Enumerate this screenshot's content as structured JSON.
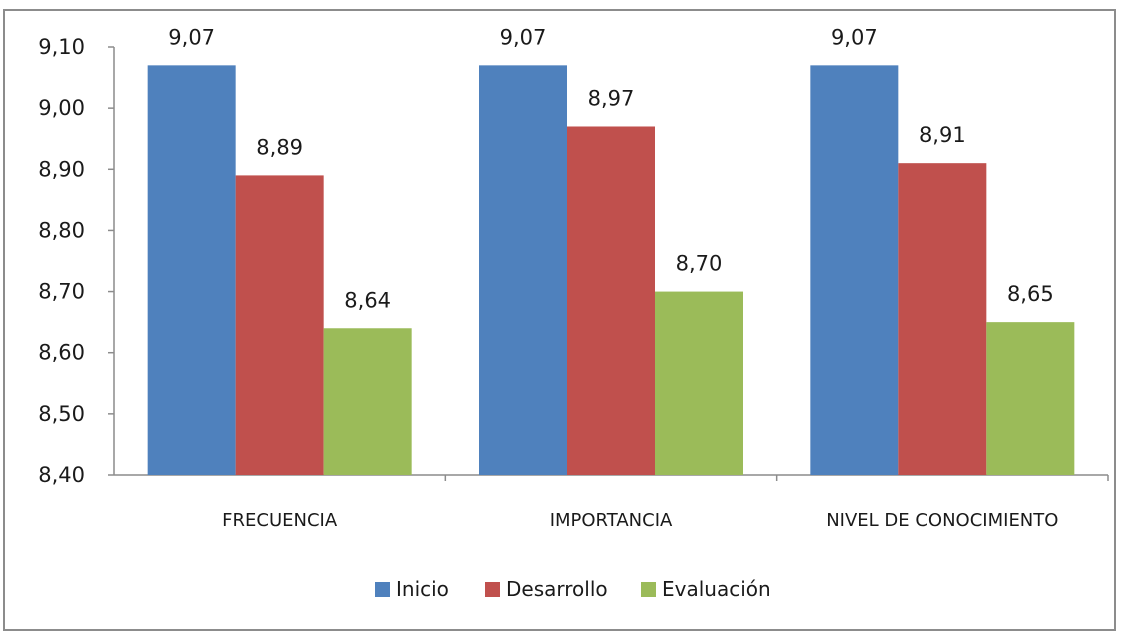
{
  "chart_data": {
    "type": "bar",
    "title": "",
    "xlabel": "",
    "ylabel": "",
    "categories": [
      "FRECUENCIA",
      "IMPORTANCIA",
      "NIVEL DE CONOCIMIENTO"
    ],
    "series": [
      {
        "name": "Inicio",
        "color": "#4f81bd",
        "values": [
          9.07,
          9.07,
          9.07
        ],
        "labels": [
          "9,07",
          "9,07",
          "9,07"
        ]
      },
      {
        "name": "Desarrollo",
        "color": "#c0504d",
        "values": [
          8.89,
          8.97,
          8.91
        ],
        "labels": [
          "8,89",
          "8,97",
          "8,91"
        ]
      },
      {
        "name": "Evaluación",
        "color": "#9bbb59",
        "values": [
          8.64,
          8.7,
          8.65
        ],
        "labels": [
          "8,64",
          "8,70",
          "8,65"
        ]
      }
    ],
    "ylim": [
      8.4,
      9.1
    ],
    "yticks": [
      8.4,
      8.5,
      8.6,
      8.7,
      8.8,
      8.9,
      9.0,
      9.1
    ],
    "ytick_labels": [
      "8,40",
      "8,50",
      "8,60",
      "8,70",
      "8,80",
      "8,90",
      "9,00",
      "9,10"
    ],
    "grid": false,
    "legend_position": "bottom"
  }
}
